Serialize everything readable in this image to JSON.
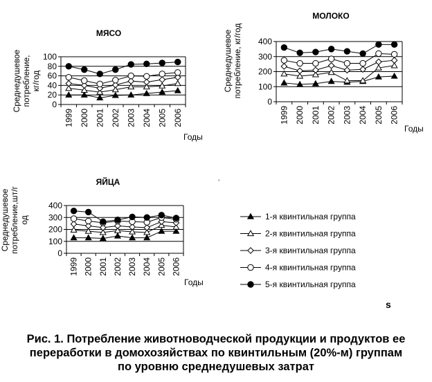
{
  "chart_data": [
    {
      "type": "line",
      "title": "МЯСО",
      "ylabel": "Среднедушевое потребление, кг/год",
      "xlabel": "Годы",
      "ylim": [
        0,
        100
      ],
      "yticks": [
        0,
        20,
        40,
        60,
        80,
        100
      ],
      "grid": true,
      "categories": [
        "1999",
        "2000",
        "2001",
        "2002",
        "2003",
        "2004",
        "2005",
        "2006"
      ],
      "series": [
        {
          "name": "1-я квинтильная группа",
          "values": [
            20,
            20,
            14,
            19,
            20,
            23,
            26,
            29
          ]
        },
        {
          "name": "2-я квинтильная группа",
          "values": [
            34,
            30,
            26,
            31,
            37,
            37,
            39,
            44
          ]
        },
        {
          "name": "3-я квинтильная группа",
          "values": [
            44,
            40,
            34,
            41,
            49,
            47,
            52,
            57
          ]
        },
        {
          "name": "4-я квинтильная группа",
          "values": [
            57,
            50,
            43,
            51,
            60,
            59,
            64,
            67
          ]
        },
        {
          "name": "5-я квинтильная группа",
          "values": [
            80,
            73,
            64,
            73,
            84,
            85,
            87,
            89
          ]
        }
      ]
    },
    {
      "type": "line",
      "title": "МОЛОКО",
      "ylabel": "Среднедушевое потребление, кг/год",
      "xlabel": "Годы",
      "ylim": [
        0,
        400
      ],
      "yticks": [
        0,
        100,
        200,
        300,
        400
      ],
      "grid": true,
      "categories": [
        "1999",
        "2000",
        "2001",
        "2002",
        "2003",
        "2004",
        "2005",
        "2006"
      ],
      "series": [
        {
          "name": "1-я квинтильная группа",
          "values": [
            125,
            115,
            120,
            135,
            130,
            135,
            165,
            170
          ]
        },
        {
          "name": "2-я квинтильная группа",
          "values": [
            185,
            170,
            180,
            195,
            140,
            140,
            225,
            240
          ]
        },
        {
          "name": "3-я квинтильная группа",
          "values": [
            235,
            205,
            210,
            240,
            210,
            215,
            265,
            275
          ]
        },
        {
          "name": "4-я квинтильная группа",
          "values": [
            275,
            255,
            255,
            285,
            255,
            255,
            320,
            315
          ]
        },
        {
          "name": "5-я квинтильная группа",
          "values": [
            360,
            325,
            330,
            350,
            335,
            320,
            380,
            380
          ]
        }
      ]
    },
    {
      "type": "line",
      "title": "ЯЙЦА",
      "ylabel": "Среднедушевое потребление,шт/год",
      "xlabel": "Годы",
      "ylim": [
        0,
        400
      ],
      "yticks": [
        0,
        100,
        200,
        300,
        400
      ],
      "grid": true,
      "categories": [
        "1999",
        "2000",
        "2001",
        "2002",
        "2003",
        "2004",
        "2005",
        "2006"
      ],
      "series": [
        {
          "name": "1-я квинтильная группа",
          "values": [
            130,
            130,
            125,
            145,
            130,
            130,
            185,
            185
          ]
        },
        {
          "name": "2-я квинтильная группа",
          "values": [
            195,
            185,
            175,
            190,
            180,
            175,
            235,
            220
          ]
        },
        {
          "name": "3-я квинтильная группа",
          "values": [
            245,
            230,
            215,
            230,
            220,
            215,
            265,
            255
          ]
        },
        {
          "name": "4-я квинтильная группа",
          "values": [
            290,
            270,
            255,
            270,
            265,
            260,
            300,
            285
          ]
        },
        {
          "name": "5-я квинтильная группа",
          "values": [
            355,
            345,
            265,
            280,
            305,
            300,
            320,
            295
          ]
        }
      ]
    }
  ],
  "legend": {
    "position": "bottom-right",
    "items": [
      {
        "label": "1-я квинтильная группа",
        "marker": "filled-triangle"
      },
      {
        "label": "2-я квинтильная группа",
        "marker": "open-triangle"
      },
      {
        "label": "3-я квинтильная группа",
        "marker": "open-diamond"
      },
      {
        "label": "4-я квинтильная группа",
        "marker": "open-circle"
      },
      {
        "label": "5-я квинтильная группа",
        "marker": "filled-circle"
      }
    ]
  },
  "caption": {
    "line1": "Рис. 1. Потребление животноводческой продукции и продуктов ее",
    "line2": "переработки в домохозяйствах по квинтильным (20%-м) группам",
    "line3": "по уровню среднедушевых затрат"
  },
  "stray_marks": {
    "letter": "s",
    "tick": "ˈ"
  },
  "colors": {
    "ink": "#000000",
    "background": "#ffffff"
  }
}
